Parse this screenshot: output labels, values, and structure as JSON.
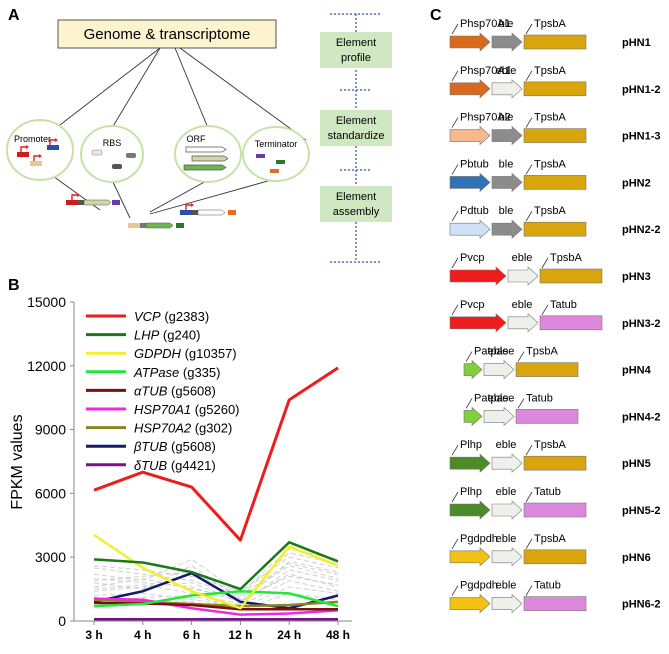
{
  "panel_a": {
    "letter": "A",
    "title": "Genome & transcriptome",
    "categories": [
      "Promoter",
      "RBS",
      "ORF",
      "Terminator"
    ],
    "steps": [
      "Element profile",
      "Element standardize",
      "Element assembly"
    ]
  },
  "panel_b": {
    "letter": "B",
    "chart_data": {
      "type": "line",
      "ylabel": "FPKM values",
      "xlabel": "",
      "categories": [
        "3 h",
        "4 h",
        "6 h",
        "12 h",
        "24 h",
        "48 h"
      ],
      "ylim": [
        0,
        15000
      ],
      "yticks": [
        "0",
        "3000",
        "6000",
        "9000",
        "12000",
        "15000"
      ],
      "yticks_values": [
        0,
        3000,
        6000,
        9000,
        12000,
        15000
      ],
      "series": [
        {
          "gene": "VCP",
          "id": "(g2383)",
          "color": "#ee1c1c",
          "values": [
            6150,
            7000,
            6300,
            3800,
            10400,
            11900
          ]
        },
        {
          "gene": "LHP",
          "id": "(g240)",
          "color": "#1a7a1a",
          "values": [
            2900,
            2750,
            2300,
            1500,
            3700,
            2800
          ]
        },
        {
          "gene": "GDPDH",
          "id": "(g10357)",
          "color": "#f2f02a",
          "values": [
            4050,
            2500,
            1400,
            600,
            3500,
            2600
          ]
        },
        {
          "gene": "ATPase",
          "id": "(g335)",
          "color": "#22e83a",
          "values": [
            700,
            800,
            1200,
            1400,
            1300,
            700
          ]
        },
        {
          "gene": "αTUB",
          "id": "(g5608)",
          "color": "#7a1010",
          "values": [
            850,
            820,
            750,
            550,
            550,
            550
          ]
        },
        {
          "gene": "HSP70A1",
          "id": "(g5260)",
          "color": "#ee2adf",
          "values": [
            1050,
            1000,
            600,
            300,
            350,
            500
          ]
        },
        {
          "gene": "HSP70A2",
          "id": "(g302)",
          "color": "#8a8620",
          "values": [
            1000,
            900,
            800,
            700,
            750,
            900
          ]
        },
        {
          "gene": "βTUB",
          "id": "(g5608)",
          "color": "#141a70",
          "values": [
            900,
            1400,
            2250,
            900,
            600,
            1200
          ]
        },
        {
          "gene": "δTUB",
          "id": "(g4421)",
          "color": "#7a108a",
          "values": [
            80,
            80,
            80,
            80,
            80,
            80
          ]
        }
      ],
      "background_series": [
        [
          2000,
          1800,
          1600,
          900,
          2800,
          2300
        ],
        [
          2500,
          2200,
          1900,
          1200,
          3200,
          2700
        ],
        [
          1500,
          1700,
          1300,
          800,
          2400,
          1900
        ],
        [
          1800,
          1500,
          2600,
          1000,
          2100,
          1700
        ],
        [
          1200,
          1300,
          1000,
          700,
          1900,
          1400
        ],
        [
          1600,
          2000,
          1500,
          1100,
          2600,
          2000
        ],
        [
          2200,
          1900,
          2900,
          1300,
          3400,
          2900
        ],
        [
          900,
          1100,
          1200,
          600,
          1600,
          1300
        ],
        [
          1400,
          1600,
          1800,
          900,
          2200,
          1600
        ],
        [
          2600,
          2400,
          2100,
          1400,
          3000,
          2500
        ],
        [
          1100,
          1000,
          900,
          500,
          1300,
          1000
        ],
        [
          1900,
          2100,
          2300,
          1200,
          2700,
          2200
        ]
      ]
    }
  },
  "panel_c": {
    "letter": "C",
    "colors": {
      "promoter_orange": "#d86a1e",
      "promoter_peach": "#f6b98e",
      "promoter_blue": "#2f72b8",
      "promoter_lightblue": "#cfe1f4",
      "promoter_red": "#ee1c1c",
      "promoter_lightgreen": "#82cf3c",
      "promoter_darkgreen": "#4d8a2a",
      "promoter_yellow": "#f4c012",
      "ble_gray": "#8c8c8c",
      "eble_pale": "#eef1ea",
      "term_gold": "#d8a50c",
      "term_pink": "#dc88dc"
    },
    "constructs": [
      {
        "name": "pHN1",
        "promoter": "Phsp70A1",
        "marker": "ble",
        "terminator": "TpsbA",
        "p_color": "#d86a1e",
        "m_color": "#8c8c8c",
        "t_color": "#d8a50c"
      },
      {
        "name": "pHN1-2",
        "promoter": "Phsp70A1",
        "marker": "eble",
        "terminator": "TpsbA",
        "p_color": "#d86a1e",
        "m_color": "#eef1ea",
        "t_color": "#d8a50c"
      },
      {
        "name": "pHN1-3",
        "promoter": "Phsp70A2",
        "marker": "ble",
        "terminator": "TpsbA",
        "p_color": "#f6b98e",
        "m_color": "#8c8c8c",
        "t_color": "#d8a50c"
      },
      {
        "name": "pHN2",
        "promoter": "Pbtub",
        "marker": "ble",
        "terminator": "TpsbA",
        "p_color": "#2f72b8",
        "m_color": "#8c8c8c",
        "t_color": "#d8a50c"
      },
      {
        "name": "pHN2-2",
        "promoter": "Pdtub",
        "marker": "ble",
        "terminator": "TpsbA",
        "p_color": "#cfe1f4",
        "m_color": "#8c8c8c",
        "t_color": "#d8a50c"
      },
      {
        "name": "pHN3",
        "promoter": "Pvcp",
        "marker": "eble",
        "terminator": "TpsbA",
        "p_color": "#ee1c1c",
        "m_color": "#eef1ea",
        "t_color": "#d8a50c"
      },
      {
        "name": "pHN3-2",
        "promoter": "Pvcp",
        "marker": "eble",
        "terminator": "Tatub",
        "p_color": "#ee1c1c",
        "m_color": "#eef1ea",
        "t_color": "#dc88dc"
      },
      {
        "name": "pHN4",
        "promoter": "Patpase",
        "marker": "eble",
        "terminator": "TpsbA",
        "p_color": "#82cf3c",
        "m_color": "#eef1ea",
        "t_color": "#d8a50c"
      },
      {
        "name": "pHN4-2",
        "promoter": "Patpase",
        "marker": "eble",
        "terminator": "Tatub",
        "p_color": "#82cf3c",
        "m_color": "#eef1ea",
        "t_color": "#dc88dc"
      },
      {
        "name": "pHN5",
        "promoter": "Plhp",
        "marker": "eble",
        "terminator": "TpsbA",
        "p_color": "#4d8a2a",
        "m_color": "#eef1ea",
        "t_color": "#d8a50c"
      },
      {
        "name": "pHN5-2",
        "promoter": "Plhp",
        "marker": "eble",
        "terminator": "Tatub",
        "p_color": "#4d8a2a",
        "m_color": "#eef1ea",
        "t_color": "#dc88dc"
      },
      {
        "name": "pHN6",
        "promoter": "Pgdpdh",
        "marker": "eble",
        "terminator": "TpsbA",
        "p_color": "#f4c012",
        "m_color": "#eef1ea",
        "t_color": "#d8a50c"
      },
      {
        "name": "pHN6-2",
        "promoter": "Pgdpdh",
        "marker": "eble",
        "terminator": "Tatub",
        "p_color": "#f4c012",
        "m_color": "#eef1ea",
        "t_color": "#dc88dc"
      }
    ]
  }
}
